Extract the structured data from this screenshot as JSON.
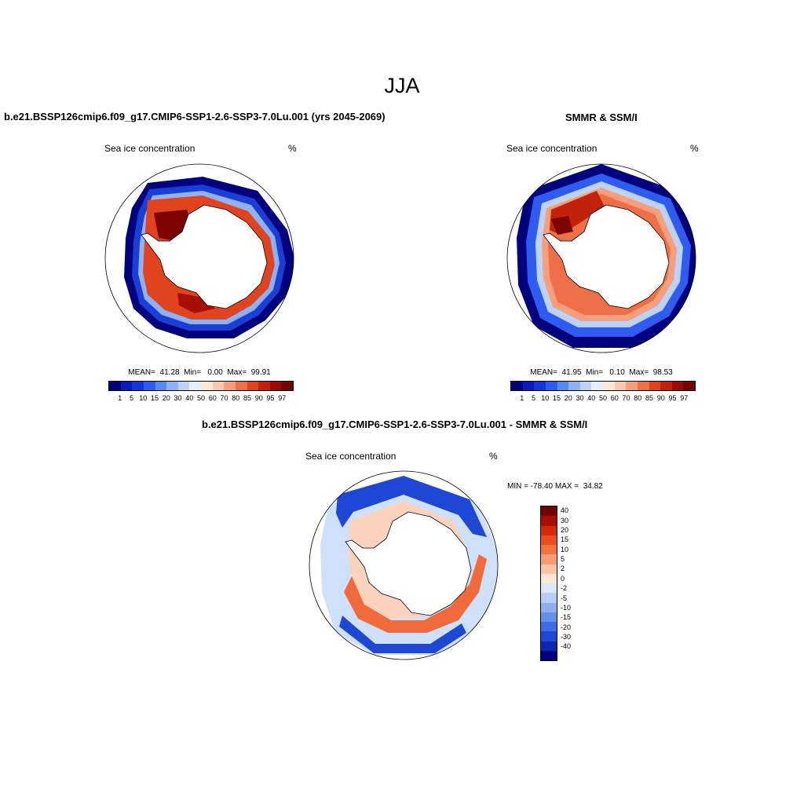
{
  "title": "JJA",
  "panels": [
    {
      "title": "b.e21.BSSP126cmip6.f09_g17.CMIP6-SSP1-2.6-SSP3-7.0Lu.001 (yrs 2045-2069)",
      "variable": "Sea ice concentration",
      "units": "%",
      "stats": "MEAN=  41.28  Min=   0.00  Max=  99.91"
    },
    {
      "title": "SMMR & SSM/I",
      "variable": "Sea ice concentration",
      "units": "%",
      "stats": "MEAN=  41.95  Min=   0.10  Max=  98.53"
    },
    {
      "title": "b.e21.BSSP126cmip6.f09_g17.CMIP6-SSP1-2.6-SSP3-7.0Lu.001 - SMMR & SSM/I",
      "variable": "Sea ice concentration",
      "units": "%",
      "stats": "MIN = -78.40 MAX =  34.82"
    }
  ],
  "colorbar_top": {
    "labels": [
      "1",
      "5",
      "10",
      "15",
      "20",
      "30",
      "40",
      "50",
      "60",
      "70",
      "80",
      "85",
      "90",
      "95",
      "97"
    ],
    "colors": [
      "#00007f",
      "#0a1ab8",
      "#1434dc",
      "#2e5cf0",
      "#5a88f2",
      "#8eb2f5",
      "#bcd2f7",
      "#e4eefa",
      "#fde6d6",
      "#fbc7ac",
      "#f79e7c",
      "#ef7048",
      "#e2431f",
      "#c2210a",
      "#9a0b04",
      "#750000"
    ]
  },
  "colorbar_diff": {
    "labels": [
      "40",
      "30",
      "20",
      "15",
      "10",
      "5",
      "2",
      "0",
      "-2",
      "-5",
      "-10",
      "-15",
      "-20",
      "-30",
      "-40"
    ],
    "colors": [
      "#750000",
      "#a80f04",
      "#d42a0a",
      "#ec4d1e",
      "#f4743f",
      "#f89c74",
      "#fbc4a6",
      "#fde7d9",
      "#dbe8fb",
      "#b6cdf7",
      "#8eafef",
      "#6690ec",
      "#3e6ce6",
      "#1f47d6",
      "#0c26b0",
      "#000080"
    ]
  },
  "map_colors": {
    "ice_high": "#7d0202",
    "ice_mid": "#e2431f",
    "ice_low": "#f79e7c",
    "edge_blue": "#1a3fd6",
    "edge_dark": "#00007f",
    "diff_pos": "#f06a3c",
    "diff_pos_light": "#fbd3bd",
    "diff_neg": "#1f47d6",
    "diff_neg_light": "#cfe0fa"
  }
}
